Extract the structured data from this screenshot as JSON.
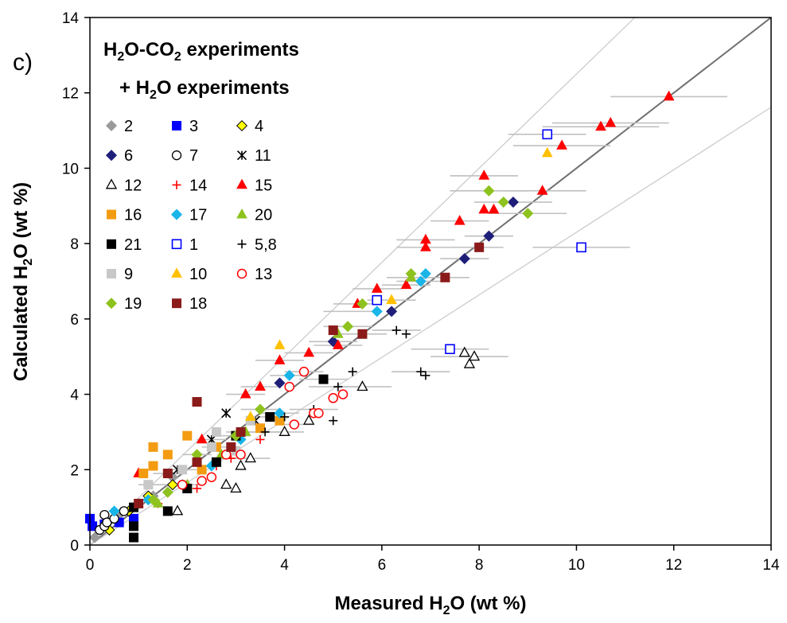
{
  "chart_data": {
    "type": "scatter",
    "panel_label": "c)",
    "title_line1": {
      "a": "H",
      "b": "2",
      "c": "O-CO",
      "d": "2",
      "e": " experiments"
    },
    "title_line2": {
      "a": "+ H",
      "b": "2",
      "c": "O experiments"
    },
    "xlabel": {
      "a": "Measured H",
      "b": "2",
      "c": "O (wt %)"
    },
    "ylabel": {
      "a": "Calculated H",
      "b": "2",
      "c": "O (wt %)"
    },
    "xlim": [
      0,
      14
    ],
    "ylim": [
      0,
      14
    ],
    "xticks": [
      "0",
      "2",
      "4",
      "6",
      "8",
      "10",
      "12",
      "14"
    ],
    "yticks": [
      "0",
      "2",
      "4",
      "6",
      "8",
      "10",
      "12",
      "14"
    ],
    "grid": false,
    "legend_position": "top-left inside",
    "reference_lines": [
      {
        "name": "1:1",
        "slope": 1.0,
        "color": "#707070"
      },
      {
        "slope": 1.25,
        "color": "#c8c8c8"
      },
      {
        "slope": 0.83,
        "color": "#c8c8c8"
      }
    ],
    "series": [
      {
        "name": "2",
        "marker": "diamond",
        "color": "#9a9a9a",
        "fill": "#9a9a9a",
        "points": [
          [
            0.1,
            0.2
          ],
          [
            0.3,
            0.5
          ],
          [
            0.6,
            0.8
          ],
          [
            1.0,
            1.1
          ],
          [
            1.3,
            1.3
          ],
          [
            1.7,
            1.8
          ]
        ]
      },
      {
        "name": "3",
        "marker": "square",
        "color": "#0000ff",
        "fill": "#0000ff",
        "points": [
          [
            0.0,
            0.7
          ],
          [
            0.05,
            0.5
          ],
          [
            0.3,
            0.55
          ],
          [
            0.6,
            0.6
          ],
          [
            0.9,
            0.7
          ]
        ]
      },
      {
        "name": "4",
        "marker": "diamond",
        "color": "#000000",
        "fill": "#ffff00",
        "points": [
          [
            0.4,
            0.4
          ],
          [
            0.8,
            0.9
          ],
          [
            1.2,
            1.3
          ],
          [
            1.7,
            1.6
          ]
        ]
      },
      {
        "name": "6",
        "marker": "diamond",
        "color": "#1f1f7a",
        "fill": "#1f1f7a",
        "points": [
          [
            3.9,
            4.3
          ],
          [
            5.0,
            5.4
          ],
          [
            6.2,
            6.2
          ],
          [
            7.7,
            7.6
          ],
          [
            8.2,
            8.2
          ],
          [
            8.7,
            9.1
          ]
        ]
      },
      {
        "name": "7",
        "marker": "circle",
        "color": "#000000",
        "fill": "#ffffff",
        "points": [
          [
            0.2,
            0.4
          ],
          [
            0.3,
            0.5
          ],
          [
            0.3,
            0.8
          ],
          [
            0.35,
            0.6
          ],
          [
            0.5,
            0.7
          ],
          [
            0.7,
            0.9
          ]
        ]
      },
      {
        "name": "11",
        "marker": "star",
        "color": "#000000",
        "fill": "#000000",
        "points": [
          [
            1.0,
            1.1
          ],
          [
            1.8,
            2.0
          ],
          [
            2.5,
            2.8
          ],
          [
            2.8,
            3.5
          ],
          [
            3.4,
            3.3
          ]
        ]
      },
      {
        "name": "12",
        "marker": "triangle-open",
        "color": "#000000",
        "fill": "#ffffff",
        "points": [
          [
            1.8,
            0.9
          ],
          [
            2.8,
            1.6
          ],
          [
            3.0,
            1.5
          ],
          [
            3.1,
            2.1
          ],
          [
            3.3,
            2.3
          ],
          [
            4.0,
            3.0
          ],
          [
            4.5,
            3.3
          ],
          [
            5.6,
            4.2
          ],
          [
            7.7,
            5.1
          ],
          [
            7.8,
            4.8
          ],
          [
            7.9,
            5.0
          ]
        ]
      },
      {
        "name": "14",
        "marker": "plus",
        "color": "#ff0000",
        "fill": "#ff0000",
        "points": [
          [
            1.4,
            1.1
          ],
          [
            2.2,
            1.5
          ],
          [
            2.6,
            2.1
          ],
          [
            2.9,
            2.3
          ],
          [
            3.5,
            2.8
          ]
        ]
      },
      {
        "name": "15",
        "marker": "triangle",
        "color": "#ff0000",
        "fill": "#ff0000",
        "points": [
          [
            1.0,
            1.9
          ],
          [
            2.3,
            2.8
          ],
          [
            3.2,
            4.0
          ],
          [
            3.5,
            4.2
          ],
          [
            3.9,
            4.9
          ],
          [
            4.5,
            5.1
          ],
          [
            5.1,
            5.3
          ],
          [
            5.5,
            6.4
          ],
          [
            5.9,
            6.8
          ],
          [
            6.5,
            6.9
          ],
          [
            6.9,
            7.9
          ],
          [
            6.9,
            8.1
          ],
          [
            7.6,
            8.6
          ],
          [
            8.1,
            9.8
          ],
          [
            8.1,
            8.9
          ],
          [
            8.3,
            8.9
          ],
          [
            9.3,
            9.4
          ],
          [
            9.7,
            10.6
          ],
          [
            10.5,
            11.1
          ],
          [
            10.7,
            11.2
          ],
          [
            11.9,
            11.9
          ]
        ]
      },
      {
        "name": "16",
        "marker": "square",
        "color": "#f39c12",
        "fill": "#f39c12",
        "points": [
          [
            1.1,
            1.9
          ],
          [
            1.3,
            2.1
          ],
          [
            1.3,
            2.6
          ],
          [
            1.6,
            2.4
          ],
          [
            2.0,
            2.9
          ],
          [
            2.3,
            2.0
          ],
          [
            2.6,
            2.6
          ],
          [
            3.5,
            3.1
          ],
          [
            3.9,
            3.3
          ]
        ]
      },
      {
        "name": "17",
        "marker": "diamond",
        "color": "#19b5e8",
        "fill": "#19b5e8",
        "points": [
          [
            0.5,
            0.9
          ],
          [
            1.2,
            1.2
          ],
          [
            1.9,
            1.6
          ],
          [
            2.5,
            2.1
          ],
          [
            3.1,
            2.8
          ],
          [
            3.9,
            3.5
          ],
          [
            4.1,
            4.5
          ],
          [
            5.9,
            6.2
          ],
          [
            6.8,
            7.0
          ],
          [
            6.9,
            7.2
          ]
        ]
      },
      {
        "name": "20",
        "marker": "triangle",
        "color": "#8ec21f",
        "fill": "#8ec21f",
        "points": [
          [
            1.4,
            1.1
          ],
          [
            2.0,
            1.6
          ],
          [
            2.7,
            2.4
          ],
          [
            3.2,
            3.0
          ],
          [
            5.1,
            5.6
          ],
          [
            6.6,
            7.1
          ]
        ]
      },
      {
        "name": "21",
        "marker": "square",
        "color": "#000000",
        "fill": "#000000",
        "points": [
          [
            0.9,
            0.2
          ],
          [
            0.9,
            0.5
          ],
          [
            0.9,
            1.0
          ],
          [
            1.6,
            0.9
          ],
          [
            2.0,
            1.5
          ],
          [
            2.6,
            2.2
          ],
          [
            3.0,
            2.9
          ],
          [
            3.7,
            3.4
          ],
          [
            4.8,
            4.4
          ]
        ]
      },
      {
        "name": "1",
        "marker": "square-open",
        "color": "#0000ff",
        "fill": "#ffffff",
        "points": [
          [
            5.9,
            6.5
          ],
          [
            7.4,
            5.2
          ],
          [
            9.4,
            10.9
          ],
          [
            10.1,
            7.9
          ]
        ]
      },
      {
        "name": "5,8",
        "marker": "plus",
        "color": "#000000",
        "fill": "#000000",
        "points": [
          [
            3.6,
            3.0
          ],
          [
            4.0,
            3.4
          ],
          [
            4.6,
            3.6
          ],
          [
            5.0,
            3.3
          ],
          [
            5.1,
            4.2
          ],
          [
            5.4,
            4.6
          ],
          [
            6.3,
            5.7
          ],
          [
            6.5,
            5.6
          ],
          [
            6.8,
            4.6
          ],
          [
            6.9,
            4.5
          ]
        ]
      },
      {
        "name": "9",
        "marker": "square",
        "color": "#c8c8c8",
        "fill": "#c8c8c8",
        "points": [
          [
            1.2,
            1.6
          ],
          [
            1.9,
            2.0
          ],
          [
            2.5,
            2.6
          ],
          [
            2.6,
            3.0
          ],
          [
            3.0,
            2.5
          ],
          [
            3.3,
            3.3
          ]
        ]
      },
      {
        "name": "10",
        "marker": "triangle",
        "color": "#ffc000",
        "fill": "#ffc000",
        "points": [
          [
            3.3,
            3.4
          ],
          [
            3.9,
            5.3
          ],
          [
            6.2,
            6.5
          ],
          [
            9.4,
            10.4
          ]
        ]
      },
      {
        "name": "13",
        "marker": "circle-open",
        "color": "#ff0000",
        "fill": "#ffffff",
        "points": [
          [
            1.9,
            1.6
          ],
          [
            2.3,
            1.7
          ],
          [
            2.5,
            1.8
          ],
          [
            2.8,
            2.4
          ],
          [
            3.1,
            2.4
          ],
          [
            4.2,
            3.2
          ],
          [
            4.6,
            3.5
          ],
          [
            4.7,
            3.5
          ],
          [
            5.0,
            3.9
          ],
          [
            5.2,
            4.0
          ],
          [
            4.1,
            4.2
          ],
          [
            4.4,
            4.6
          ]
        ]
      },
      {
        "name": "19",
        "marker": "diamond",
        "color": "#8ec21f",
        "fill": "#8ec21f",
        "points": [
          [
            1.3,
            1.2
          ],
          [
            1.6,
            1.4
          ],
          [
            2.2,
            2.4
          ],
          [
            3.0,
            2.9
          ],
          [
            3.5,
            3.6
          ],
          [
            5.3,
            5.8
          ],
          [
            5.6,
            6.4
          ],
          [
            6.6,
            7.2
          ],
          [
            8.2,
            9.4
          ],
          [
            8.5,
            9.1
          ],
          [
            9.0,
            8.8
          ]
        ]
      },
      {
        "name": "18",
        "marker": "square",
        "color": "#8b1a1a",
        "fill": "#8b1a1a",
        "points": [
          [
            1.0,
            1.1
          ],
          [
            1.6,
            1.9
          ],
          [
            2.2,
            3.8
          ],
          [
            2.2,
            2.2
          ],
          [
            2.9,
            2.6
          ],
          [
            3.1,
            3.0
          ],
          [
            5.0,
            5.7
          ],
          [
            5.6,
            5.6
          ],
          [
            7.3,
            7.1
          ],
          [
            8.0,
            7.9
          ]
        ]
      }
    ],
    "error_bars": [
      [
        5.4,
        6.2,
        0.6
      ],
      [
        6.3,
        5.7,
        0.5
      ],
      [
        6.8,
        4.6,
        0.6
      ],
      [
        7.4,
        5.2,
        0.8
      ],
      [
        7.8,
        5.0,
        0.8
      ],
      [
        8.1,
        9.8,
        0.7
      ],
      [
        8.2,
        9.4,
        0.8
      ],
      [
        8.7,
        9.1,
        0.8
      ],
      [
        9.0,
        8.8,
        0.8
      ],
      [
        9.3,
        9.4,
        0.9
      ],
      [
        9.4,
        10.9,
        0.8
      ],
      [
        9.7,
        10.6,
        1.0
      ],
      [
        10.1,
        7.9,
        1.0
      ],
      [
        10.5,
        11.1,
        1.2
      ],
      [
        10.7,
        11.2,
        1.2
      ],
      [
        11.9,
        11.9,
        1.2
      ],
      [
        5.6,
        4.2,
        0.6
      ],
      [
        5.1,
        4.2,
        0.6
      ],
      [
        4.6,
        3.6,
        0.5
      ],
      [
        4.0,
        3.0,
        0.4
      ],
      [
        6.9,
        8.1,
        0.6
      ],
      [
        6.9,
        7.9,
        0.6
      ],
      [
        7.6,
        8.6,
        0.6
      ],
      [
        7.7,
        7.6,
        0.5
      ],
      [
        8.2,
        8.2,
        0.5
      ],
      [
        8.0,
        7.9,
        0.5
      ],
      [
        7.3,
        7.1,
        0.5
      ],
      [
        5.5,
        6.4,
        0.5
      ],
      [
        5.9,
        6.8,
        0.5
      ],
      [
        5.0,
        5.4,
        0.5
      ],
      [
        5.1,
        5.3,
        0.5
      ],
      [
        4.5,
        5.1,
        0.5
      ],
      [
        4.8,
        4.4,
        0.5
      ],
      [
        4.1,
        4.5,
        0.4
      ],
      [
        3.9,
        4.9,
        0.5
      ],
      [
        3.5,
        4.2,
        0.4
      ],
      [
        3.2,
        4.0,
        0.4
      ],
      [
        4.4,
        4.6,
        0.4
      ],
      [
        4.2,
        3.2,
        0.4
      ],
      [
        3.6,
        3.0,
        0.4
      ],
      [
        3.3,
        2.3,
        0.4
      ],
      [
        2.9,
        2.3,
        0.4
      ],
      [
        6.6,
        7.1,
        0.5
      ],
      [
        6.5,
        6.9,
        0.5
      ],
      [
        6.2,
        6.5,
        0.5
      ],
      [
        6.8,
        7.0,
        0.5
      ],
      [
        5.6,
        5.6,
        0.5
      ],
      [
        5.3,
        5.8,
        0.5
      ],
      [
        3.5,
        3.6,
        0.4
      ],
      [
        3.9,
        3.5,
        0.4
      ],
      [
        3.0,
        2.9,
        0.3
      ],
      [
        2.6,
        2.6,
        0.3
      ],
      [
        2.2,
        2.4,
        0.3
      ],
      [
        1.9,
        2.0,
        0.3
      ],
      [
        1.6,
        1.9,
        0.3
      ],
      [
        1.3,
        1.6,
        0.3
      ],
      [
        2.5,
        2.8,
        0.3
      ],
      [
        3.1,
        3.0,
        0.3
      ],
      [
        3.7,
        3.4,
        0.3
      ],
      [
        2.0,
        1.6,
        0.3
      ]
    ]
  }
}
